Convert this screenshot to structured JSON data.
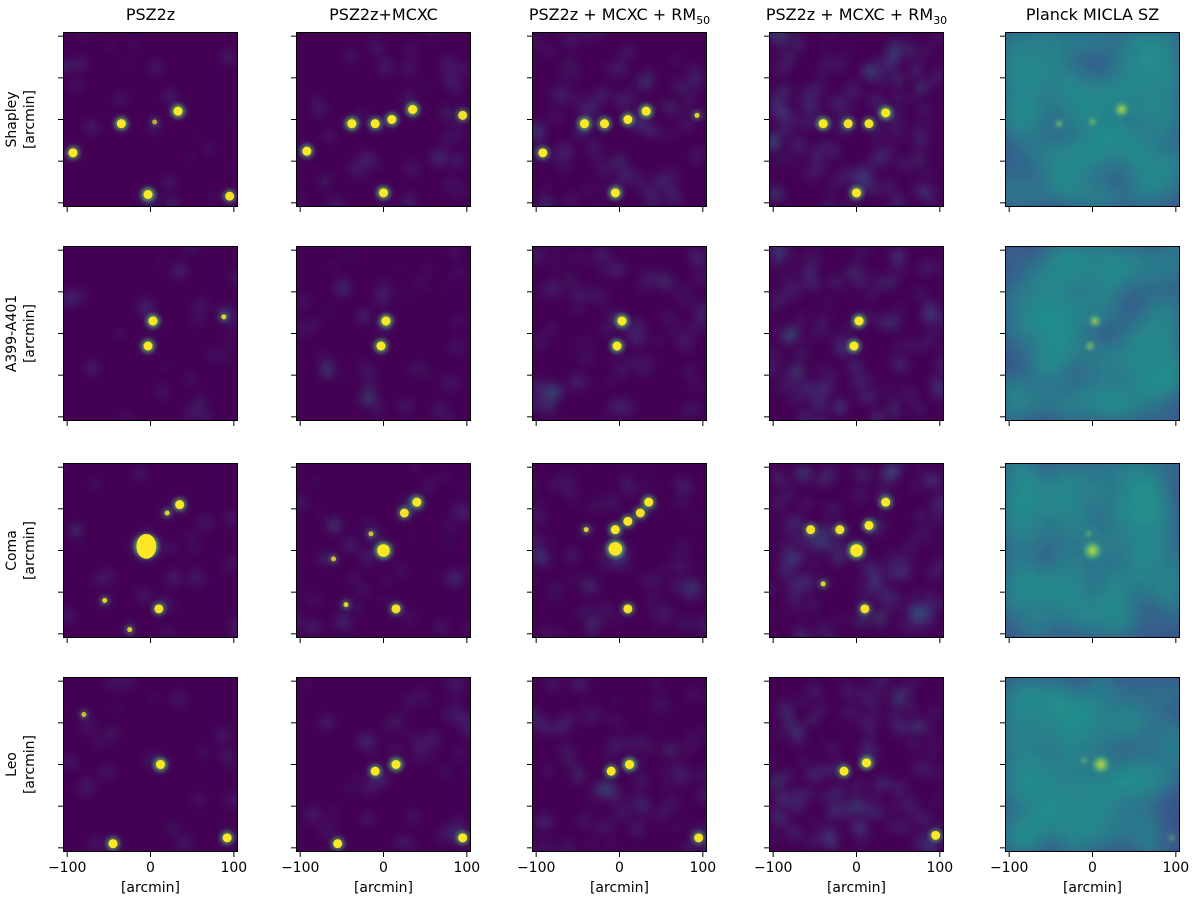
{
  "figure": {
    "columns": [
      {
        "title": "PSZ2z"
      },
      {
        "title": "PSZ2z+MCXC"
      },
      {
        "title": "PSZ2z + MCXC + RM",
        "sub": "50"
      },
      {
        "title": "PSZ2z + MCXC + RM",
        "sub": "30"
      },
      {
        "title": "Planck MICLA SZ"
      }
    ],
    "rows": [
      {
        "name": "Shapley",
        "unit": "[arcmin]"
      },
      {
        "name": "A399-A401",
        "unit": "[arcmin]"
      },
      {
        "name": "Coma",
        "unit": "[arcmin]"
      },
      {
        "name": "Leo",
        "unit": "[arcmin]"
      }
    ],
    "xlabel": "[arcmin]",
    "xticks": [
      -100,
      0,
      100
    ],
    "xtick_labels": [
      "−100",
      "0",
      "100"
    ],
    "xlim": [
      -105,
      105
    ],
    "ylim": [
      -105,
      105
    ],
    "yticks": [
      -100,
      -50,
      0,
      50,
      100
    ]
  },
  "chart_data": {
    "type": "heatmap",
    "colormap": "viridis",
    "colors": {
      "background": "#440154",
      "bright": "#fde725",
      "mid": "#21918c",
      "low": "#3b528b"
    },
    "panels": [
      {
        "row": "Shapley",
        "column": "PSZ2z",
        "clusters": [
          {
            "x": 33,
            "y": 10,
            "amp": 1
          },
          {
            "x": -35,
            "y": -5,
            "amp": 0.9
          },
          {
            "x": -93,
            "y": -40,
            "amp": 0.8
          },
          {
            "x": -3,
            "y": -90,
            "amp": 1
          },
          {
            "x": 95,
            "y": -92,
            "amp": 0.6
          },
          {
            "x": 5,
            "y": -3,
            "amp": 0.3
          }
        ]
      },
      {
        "row": "Shapley",
        "column": "PSZ2z+MCXC",
        "clusters": [
          {
            "x": 35,
            "y": 12,
            "amp": 1
          },
          {
            "x": 10,
            "y": 0,
            "amp": 0.8
          },
          {
            "x": -10,
            "y": -5,
            "amp": 0.7
          },
          {
            "x": -38,
            "y": -5,
            "amp": 1
          },
          {
            "x": -92,
            "y": -38,
            "amp": 0.8
          },
          {
            "x": 0,
            "y": -88,
            "amp": 0.9
          },
          {
            "x": 95,
            "y": 5,
            "amp": 0.6
          }
        ]
      },
      {
        "row": "Shapley",
        "column": "PSZ2z + MCXC + RM50",
        "clusters": [
          {
            "x": 32,
            "y": 10,
            "amp": 1
          },
          {
            "x": 10,
            "y": 0,
            "amp": 0.8
          },
          {
            "x": -18,
            "y": -5,
            "amp": 0.8
          },
          {
            "x": -42,
            "y": -5,
            "amp": 1
          },
          {
            "x": -92,
            "y": -40,
            "amp": 0.7
          },
          {
            "x": -5,
            "y": -88,
            "amp": 0.9
          },
          {
            "x": 93,
            "y": 5,
            "amp": 0.5
          }
        ]
      },
      {
        "row": "Shapley",
        "column": "PSZ2z + MCXC + RM30",
        "clusters": [
          {
            "x": 35,
            "y": 8,
            "amp": 1
          },
          {
            "x": 15,
            "y": -5,
            "amp": 0.6
          },
          {
            "x": -10,
            "y": -5,
            "amp": 0.6
          },
          {
            "x": -40,
            "y": -5,
            "amp": 0.9
          },
          {
            "x": 0,
            "y": -88,
            "amp": 0.9
          }
        ]
      },
      {
        "row": "Shapley",
        "column": "Planck MICLA SZ",
        "clusters": [
          {
            "x": 35,
            "y": 12,
            "amp": 1
          },
          {
            "x": 0,
            "y": -3,
            "amp": 0.5
          },
          {
            "x": -40,
            "y": -5,
            "amp": 0.5
          }
        ]
      },
      {
        "row": "A399-A401",
        "column": "PSZ2z",
        "clusters": [
          {
            "x": 3,
            "y": 15,
            "amp": 1
          },
          {
            "x": -3,
            "y": -15,
            "amp": 0.9
          },
          {
            "x": 88,
            "y": 20,
            "amp": 0.5
          }
        ]
      },
      {
        "row": "A399-A401",
        "column": "PSZ2z+MCXC",
        "clusters": [
          {
            "x": 3,
            "y": 15,
            "amp": 1
          },
          {
            "x": -3,
            "y": -15,
            "amp": 0.9
          }
        ]
      },
      {
        "row": "A399-A401",
        "column": "PSZ2z + MCXC + RM50",
        "clusters": [
          {
            "x": 3,
            "y": 15,
            "amp": 1
          },
          {
            "x": -3,
            "y": -15,
            "amp": 0.9
          }
        ]
      },
      {
        "row": "A399-A401",
        "column": "PSZ2z + MCXC + RM30",
        "clusters": [
          {
            "x": 3,
            "y": 15,
            "amp": 1
          },
          {
            "x": -3,
            "y": -15,
            "amp": 0.9
          }
        ]
      },
      {
        "row": "A399-A401",
        "column": "Planck MICLA SZ",
        "clusters": [
          {
            "x": 3,
            "y": 15,
            "amp": 0.8
          },
          {
            "x": -3,
            "y": -15,
            "amp": 0.6
          }
        ]
      },
      {
        "row": "Coma",
        "column": "PSZ2z",
        "clusters": [
          {
            "x": -5,
            "y": 5,
            "amp": 1,
            "size": 2.2
          },
          {
            "x": 35,
            "y": 55,
            "amp": 0.8
          },
          {
            "x": 20,
            "y": 45,
            "amp": 0.5
          },
          {
            "x": 10,
            "y": -70,
            "amp": 0.6
          },
          {
            "x": -55,
            "y": -60,
            "amp": 0.5
          },
          {
            "x": -25,
            "y": -95,
            "amp": 0.5
          }
        ]
      },
      {
        "row": "Coma",
        "column": "PSZ2z+MCXC",
        "clusters": [
          {
            "x": 0,
            "y": 0,
            "amp": 1,
            "size": 1.4
          },
          {
            "x": 40,
            "y": 58,
            "amp": 0.8
          },
          {
            "x": 25,
            "y": 45,
            "amp": 0.6
          },
          {
            "x": -15,
            "y": 20,
            "amp": 0.4
          },
          {
            "x": 15,
            "y": -70,
            "amp": 0.6
          },
          {
            "x": -45,
            "y": -65,
            "amp": 0.5
          },
          {
            "x": -60,
            "y": -10,
            "amp": 0.4
          }
        ]
      },
      {
        "row": "Coma",
        "column": "PSZ2z + MCXC + RM50",
        "clusters": [
          {
            "x": -5,
            "y": 2,
            "amp": 1,
            "size": 1.5
          },
          {
            "x": -5,
            "y": 25,
            "amp": 0.8
          },
          {
            "x": 10,
            "y": 35,
            "amp": 0.7
          },
          {
            "x": 35,
            "y": 58,
            "amp": 0.8
          },
          {
            "x": 25,
            "y": 45,
            "amp": 0.6
          },
          {
            "x": -40,
            "y": 25,
            "amp": 0.5
          },
          {
            "x": 10,
            "y": -70,
            "amp": 0.6
          }
        ]
      },
      {
        "row": "Coma",
        "column": "PSZ2z + MCXC + RM30",
        "clusters": [
          {
            "x": 0,
            "y": 0,
            "amp": 1,
            "size": 1.4
          },
          {
            "x": 15,
            "y": 30,
            "amp": 0.8
          },
          {
            "x": 35,
            "y": 58,
            "amp": 0.8
          },
          {
            "x": -20,
            "y": 25,
            "amp": 0.6
          },
          {
            "x": -55,
            "y": 25,
            "amp": 0.6
          },
          {
            "x": 10,
            "y": -70,
            "amp": 0.6
          },
          {
            "x": -40,
            "y": -40,
            "amp": 0.5
          }
        ]
      },
      {
        "row": "Coma",
        "column": "Planck MICLA SZ",
        "clusters": [
          {
            "x": 0,
            "y": 0,
            "amp": 1,
            "size": 1.3
          },
          {
            "x": -5,
            "y": 20,
            "amp": 0.4
          }
        ]
      },
      {
        "row": "Leo",
        "column": "PSZ2z",
        "clusters": [
          {
            "x": 12,
            "y": 0,
            "amp": 1
          },
          {
            "x": -45,
            "y": -95,
            "amp": 0.8
          },
          {
            "x": 92,
            "y": -88,
            "amp": 0.8
          },
          {
            "x": -80,
            "y": 60,
            "amp": 0.4
          }
        ]
      },
      {
        "row": "Leo",
        "column": "PSZ2z+MCXC",
        "clusters": [
          {
            "x": 15,
            "y": 0,
            "amp": 1
          },
          {
            "x": -10,
            "y": -8,
            "amp": 0.7
          },
          {
            "x": -55,
            "y": -95,
            "amp": 0.7
          },
          {
            "x": 95,
            "y": -88,
            "amp": 0.8
          }
        ]
      },
      {
        "row": "Leo",
        "column": "PSZ2z + MCXC + RM50",
        "clusters": [
          {
            "x": 12,
            "y": 0,
            "amp": 1
          },
          {
            "x": -10,
            "y": -8,
            "amp": 0.7
          },
          {
            "x": 95,
            "y": -88,
            "amp": 0.6
          }
        ]
      },
      {
        "row": "Leo",
        "column": "PSZ2z + MCXC + RM30",
        "clusters": [
          {
            "x": 12,
            "y": 2,
            "amp": 1
          },
          {
            "x": -15,
            "y": -8,
            "amp": 0.7
          },
          {
            "x": 95,
            "y": -85,
            "amp": 0.7
          }
        ]
      },
      {
        "row": "Leo",
        "column": "Planck MICLA SZ",
        "clusters": [
          {
            "x": 10,
            "y": 0,
            "amp": 0.9,
            "size": 1.4
          },
          {
            "x": -10,
            "y": 5,
            "amp": 0.4
          },
          {
            "x": 95,
            "y": -88,
            "amp": 0.4
          }
        ]
      }
    ]
  }
}
